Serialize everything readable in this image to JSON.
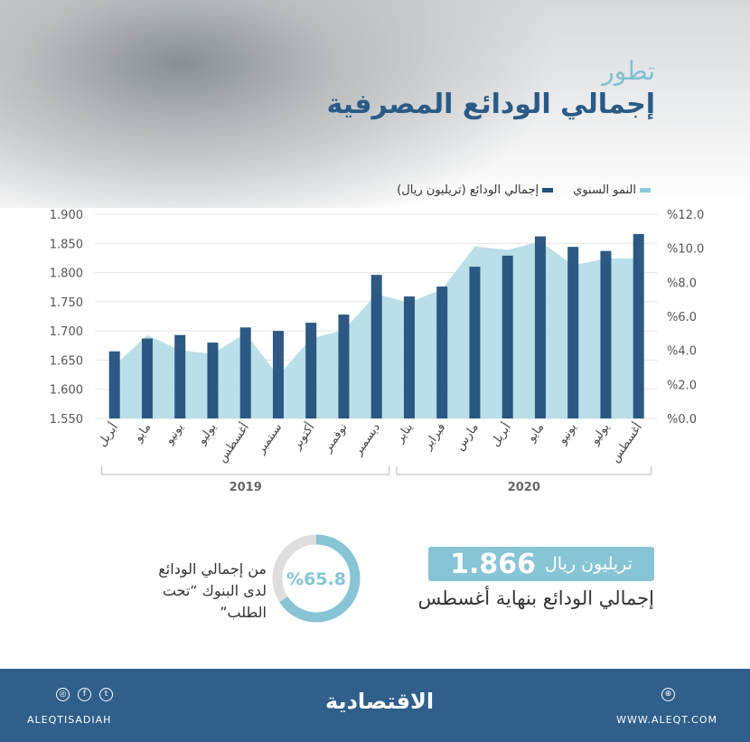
{
  "title": {
    "line1": "تطور",
    "line2": "إجمالي الودائع المصرفية"
  },
  "legend": {
    "growth": "النمو السنوي",
    "deposits": "إجمالي الودائع (تريليون ريال)"
  },
  "colors": {
    "bars": "#22507c",
    "area": "#b3dce6",
    "accent": "#86c4d6",
    "footer": "#2f5f8a",
    "title": "#2a5a86"
  },
  "chart_data": {
    "type": "bar+area",
    "categories": [
      "أبريل",
      "مايو",
      "يونيو",
      "يوليو",
      "أغسطس",
      "سبتمبر",
      "أكتوبر",
      "نوفمبر",
      "ديسمبر",
      "يناير",
      "فبراير",
      "مارس",
      "أبريل",
      "مايو",
      "يونيو",
      "يوليو",
      "أغسطس"
    ],
    "groups": [
      {
        "label": "2019",
        "from": 0,
        "to": 8
      },
      {
        "label": "2020",
        "from": 9,
        "to": 16
      }
    ],
    "series": [
      {
        "name": "إجمالي الودائع (تريليون ريال)",
        "type": "bar",
        "axis": "left",
        "values": [
          1.665,
          1.687,
          1.693,
          1.68,
          1.706,
          1.7,
          1.714,
          1.728,
          1.796,
          1.759,
          1.776,
          1.81,
          1.829,
          1.862,
          1.844,
          1.837,
          1.866
        ]
      },
      {
        "name": "النمو السنوي",
        "type": "area",
        "axis": "right",
        "values": [
          3.1,
          4.9,
          4.0,
          3.8,
          5.0,
          2.5,
          4.7,
          5.2,
          7.3,
          6.8,
          7.6,
          10.1,
          9.9,
          10.4,
          9.0,
          9.4,
          9.4
        ]
      }
    ],
    "ylim_left": [
      1.55,
      1.9
    ],
    "yticks_left": [
      "1.550",
      "1.600",
      "1.650",
      "1.700",
      "1.750",
      "1.800",
      "1.850",
      "1.900"
    ],
    "ylim_right": [
      0,
      12
    ],
    "yticks_right": [
      "%0.0",
      "%2.0",
      "%4.0",
      "%6.0",
      "%8.0",
      "%10.0",
      "%12.0"
    ],
    "grid": true,
    "legend": "top-right"
  },
  "highlight": {
    "value": "1.866",
    "unit": "تريليون ريال",
    "caption": "إجمالي الودائع بنهاية أغسطس"
  },
  "donut": {
    "percent": 65.8,
    "label": "%65.8",
    "text1": "من إجمالي الودائع",
    "text2": "لدى البنوك “تحت الطلب”"
  },
  "footer": {
    "social": "ALEQTISADIAH",
    "logo": "الاقتصادية",
    "website": "WWW.ALEQT.COM",
    "icons": [
      "instagram-icon",
      "facebook-icon",
      "twitter-icon",
      "globe-icon"
    ]
  }
}
